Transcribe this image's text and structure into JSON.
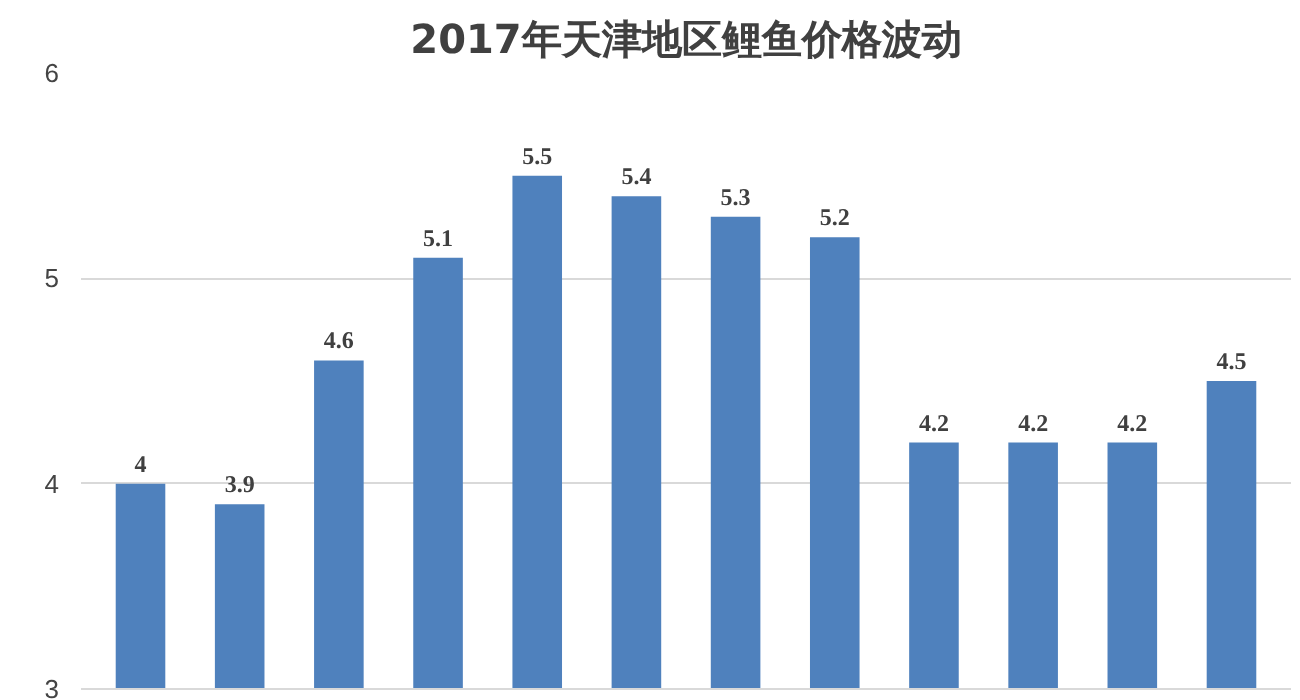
{
  "chart_data": {
    "type": "bar",
    "title": "2017年天津地区鲤鱼价格波动",
    "categories": [
      null,
      null,
      null,
      null,
      null,
      null,
      null,
      null,
      null,
      null,
      null,
      null
    ],
    "values": [
      4,
      3.9,
      4.6,
      5.1,
      5.5,
      5.4,
      5.3,
      5.2,
      4.2,
      4.2,
      4.2,
      4.5
    ],
    "color": "#4f81bd",
    "ylim": [
      3,
      6
    ],
    "yticks": [
      3,
      4,
      5,
      6
    ],
    "grid": "y",
    "data_labels": true
  }
}
